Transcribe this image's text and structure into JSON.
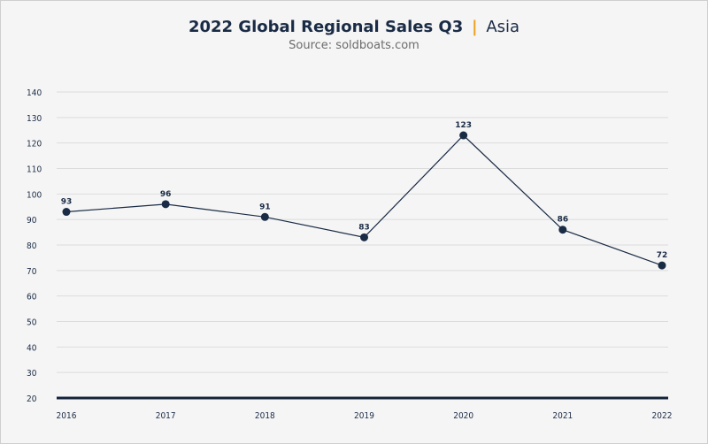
{
  "title": {
    "main": "2022 Global Regional Sales Q3",
    "separator": "|",
    "region": "Asia"
  },
  "subtitle": "Source: soldboats.com",
  "colors": {
    "line": "#1a2b45",
    "grid": "#dcdcdc",
    "accent": "#f0a020",
    "baseline": "#12223a"
  },
  "chart_data": {
    "type": "line",
    "title": "2022 Global Regional Sales Q3 | Asia",
    "subtitle": "Source: soldboats.com",
    "x": [
      "2016",
      "2017",
      "2018",
      "2019",
      "2020",
      "2021",
      "2022"
    ],
    "series": [
      {
        "values": [
          93,
          96,
          91,
          83,
          123,
          86,
          72
        ]
      }
    ],
    "y_ticks": [
      20,
      30,
      40,
      50,
      60,
      70,
      80,
      90,
      100,
      110,
      120,
      130,
      140
    ],
    "ylim": [
      20,
      140
    ],
    "grid": true,
    "data_labels": true,
    "legend": "none"
  }
}
